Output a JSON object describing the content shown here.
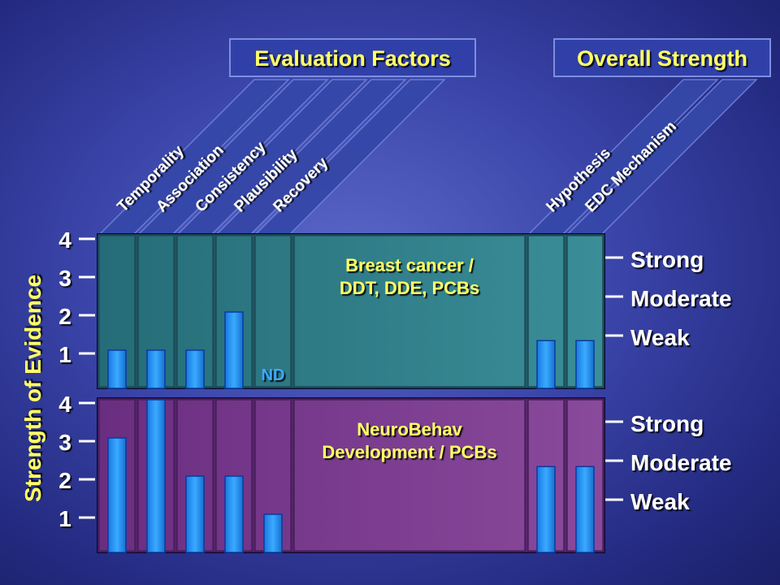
{
  "headers": {
    "evaluation": "Evaluation Factors",
    "overall": "Overall Strength"
  },
  "colors": {
    "header_fill": "#3040a8",
    "header_text": "#ffff66",
    "panel_top": "#2f7f8a",
    "panel_bottom": "#7a3a8e",
    "bar": "#1e90ff",
    "white_text": "#ffffff",
    "label_yellow": "#ffff66"
  },
  "chart_data": {
    "type": "bar",
    "ylabel": "Strength of Evidence",
    "yticks": [
      "1",
      "2",
      "3",
      "4"
    ],
    "ylim": [
      0,
      4
    ],
    "categories": [
      "Temporality",
      "Association",
      "Consistency",
      "Plausibility",
      "Recovery",
      "Hypothesis",
      "EDC Mechanism"
    ],
    "groups": [
      {
        "name": "Evaluation Factors",
        "categories": [
          "Temporality",
          "Association",
          "Consistency",
          "Plausibility",
          "Recovery"
        ]
      },
      {
        "name": "Overall Strength",
        "categories": [
          "Hypothesis",
          "EDC Mechanism"
        ]
      }
    ],
    "strength_labels": [
      "Strong",
      "Moderate",
      "Weak"
    ],
    "series": [
      {
        "name": "Breast cancer /\nDDT, DDE, PCBs",
        "label_lines": [
          "Breast cancer /",
          "DDT, DDE, PCBs"
        ],
        "values": [
          1,
          1,
          1,
          2,
          null,
          1.25,
          1.25
        ],
        "annotations": [
          {
            "category": "Recovery",
            "text": "ND"
          }
        ]
      },
      {
        "name": "NeuroBehav\nDevelopment / PCBs",
        "label_lines": [
          "NeuroBehav",
          "Development / PCBs"
        ],
        "values": [
          3,
          4,
          2,
          2,
          1,
          2.25,
          2.25
        ],
        "annotations": []
      }
    ]
  }
}
